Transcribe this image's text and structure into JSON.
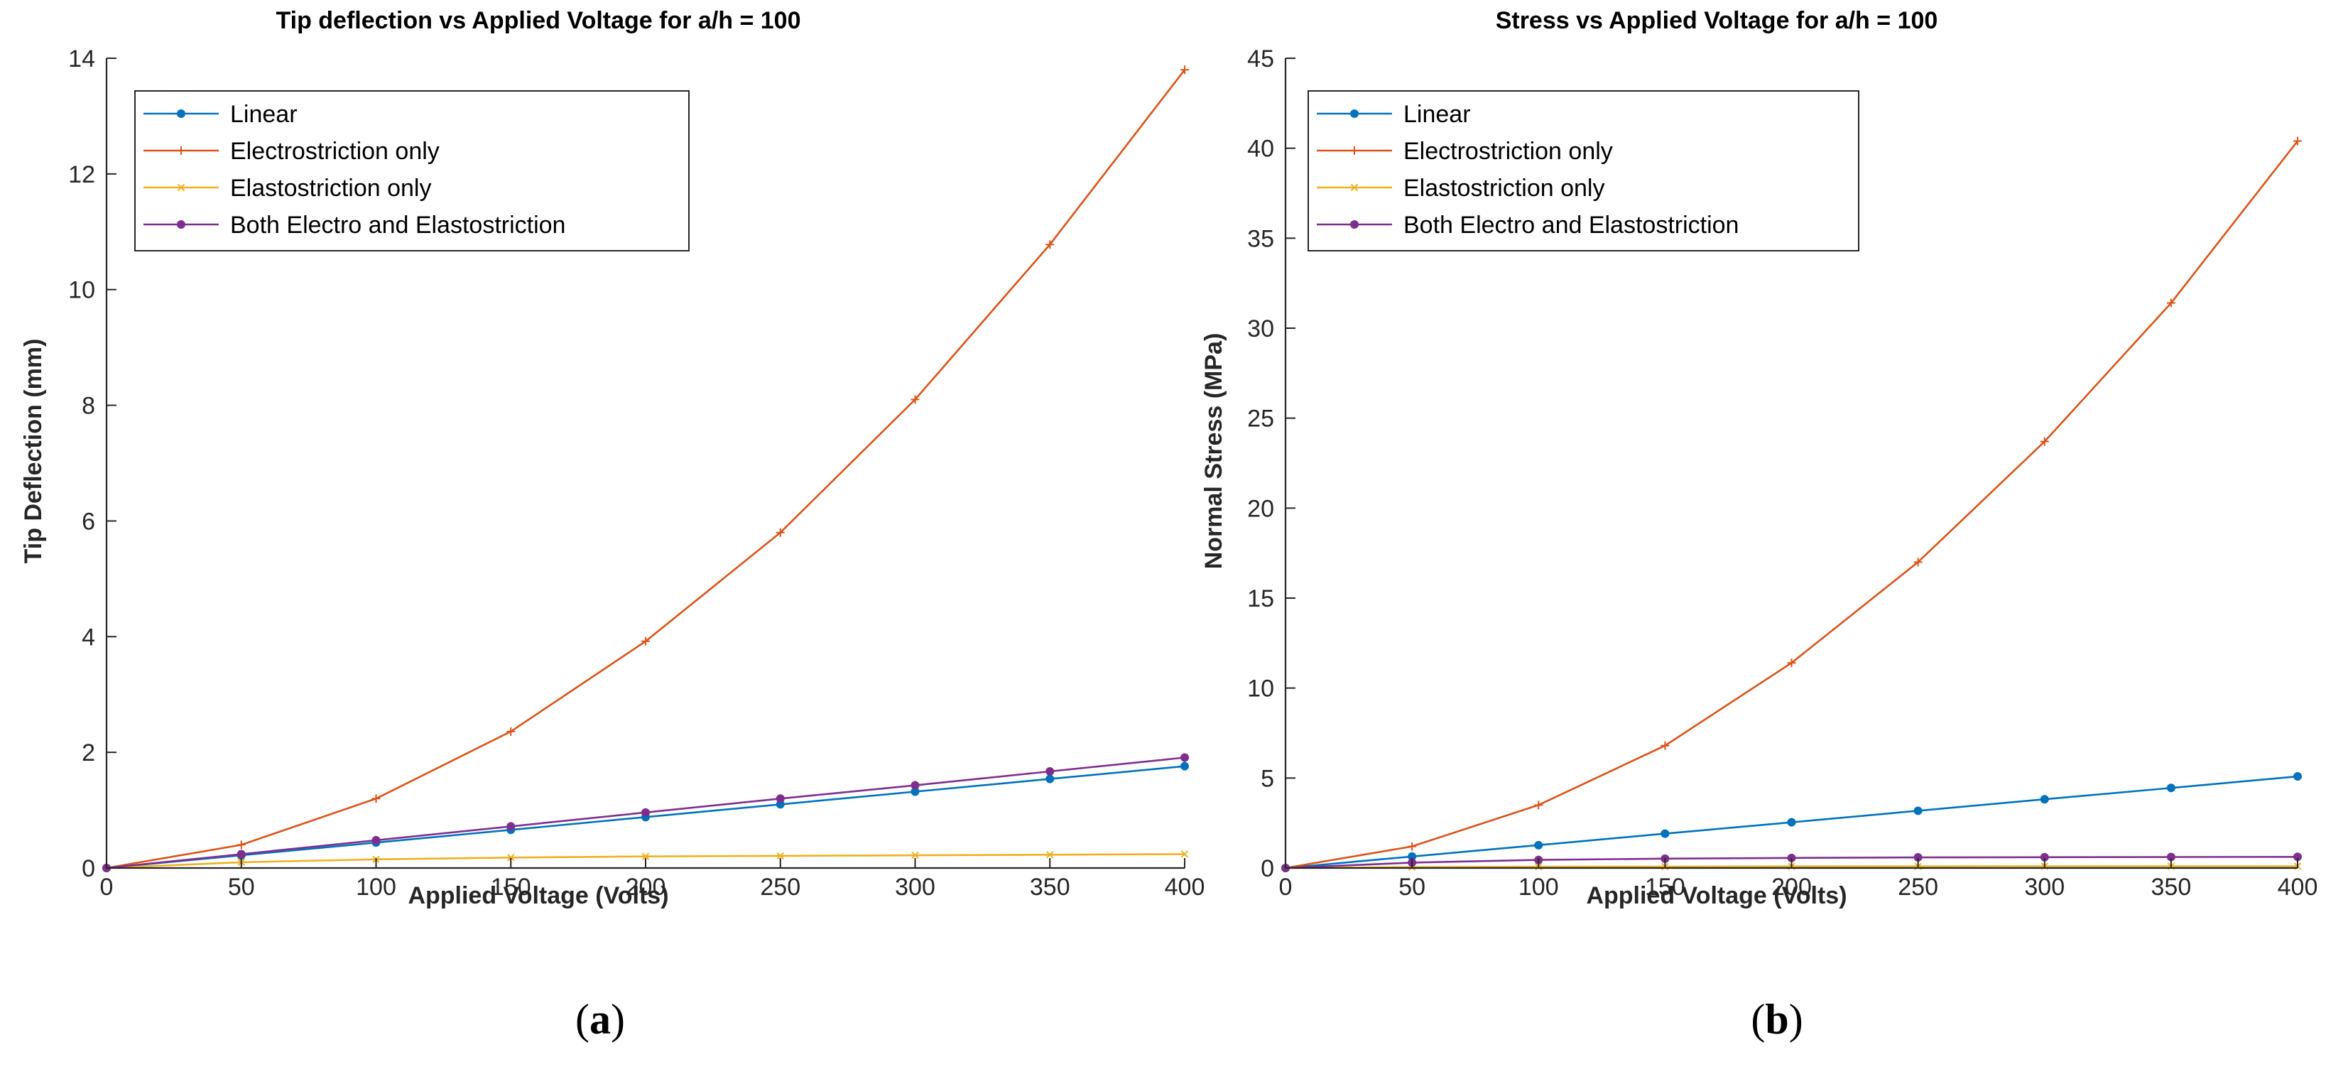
{
  "figure": {
    "captions": [
      {
        "open": "(",
        "letter": "a",
        "close": ")"
      },
      {
        "open": "(",
        "letter": "b",
        "close": ")"
      }
    ]
  },
  "colors": {
    "linear": "#0072BD",
    "electro": "#D95319",
    "elasto": "#EDB120",
    "both": "#7E2F8E"
  },
  "chart_data": [
    {
      "type": "line",
      "title": "Tip deflection vs Applied Voltage for a/h = 100",
      "xlabel": "Applied Voltage (Volts)",
      "ylabel": "Tip Deflection (mm)",
      "xlim": [
        0,
        400
      ],
      "ylim": [
        0,
        14
      ],
      "xticks": [
        0,
        50,
        100,
        150,
        200,
        250,
        300,
        350,
        400
      ],
      "yticks": [
        0,
        2,
        4,
        6,
        8,
        10,
        12,
        14
      ],
      "legend_position": "top-left",
      "x": [
        0,
        50,
        100,
        150,
        200,
        250,
        300,
        350,
        400
      ],
      "series": [
        {
          "name": "Linear",
          "color": "#0072BD",
          "marker": "dot",
          "values": [
            0,
            0.22,
            0.44,
            0.66,
            0.88,
            1.1,
            1.32,
            1.54,
            1.76
          ]
        },
        {
          "name": "Electrostriction only",
          "color": "#D95319",
          "marker": "plus",
          "values": [
            0,
            0.4,
            1.2,
            2.36,
            3.92,
            5.8,
            8.1,
            10.78,
            13.8
          ]
        },
        {
          "name": "Elastostriction only",
          "color": "#EDB120",
          "marker": "x",
          "values": [
            0,
            0.1,
            0.15,
            0.18,
            0.2,
            0.21,
            0.22,
            0.23,
            0.24
          ]
        },
        {
          "name": "Both Electro and Elastostriction",
          "color": "#7E2F8E",
          "marker": "dot",
          "values": [
            0,
            0.24,
            0.48,
            0.72,
            0.96,
            1.2,
            1.43,
            1.67,
            1.91
          ]
        }
      ]
    },
    {
      "type": "line",
      "title": "Stress vs Applied Voltage for a/h = 100",
      "xlabel": "Applied Voltage (Volts)",
      "ylabel": "Normal Stress (MPa)",
      "xlim": [
        0,
        400
      ],
      "ylim": [
        0,
        45
      ],
      "xticks": [
        0,
        50,
        100,
        150,
        200,
        250,
        300,
        350,
        400
      ],
      "yticks": [
        0,
        5,
        10,
        15,
        20,
        25,
        30,
        35,
        40,
        45
      ],
      "legend_position": "top-left",
      "x": [
        0,
        50,
        100,
        150,
        200,
        250,
        300,
        350,
        400
      ],
      "series": [
        {
          "name": "Linear",
          "color": "#0072BD",
          "marker": "dot",
          "values": [
            0,
            0.64,
            1.27,
            1.91,
            2.54,
            3.18,
            3.82,
            4.45,
            5.09
          ]
        },
        {
          "name": "Electrostriction only",
          "color": "#D95319",
          "marker": "plus",
          "values": [
            0,
            1.2,
            3.5,
            6.8,
            11.4,
            17.0,
            23.7,
            31.4,
            40.4
          ]
        },
        {
          "name": "Elastostriction only",
          "color": "#EDB120",
          "marker": "x",
          "values": [
            0,
            0.05,
            0.07,
            0.08,
            0.09,
            0.09,
            0.1,
            0.1,
            0.1
          ]
        },
        {
          "name": "Both Electro and Elastostriction",
          "color": "#7E2F8E",
          "marker": "dot",
          "values": [
            0,
            0.3,
            0.45,
            0.52,
            0.56,
            0.59,
            0.6,
            0.61,
            0.62
          ]
        }
      ]
    }
  ]
}
